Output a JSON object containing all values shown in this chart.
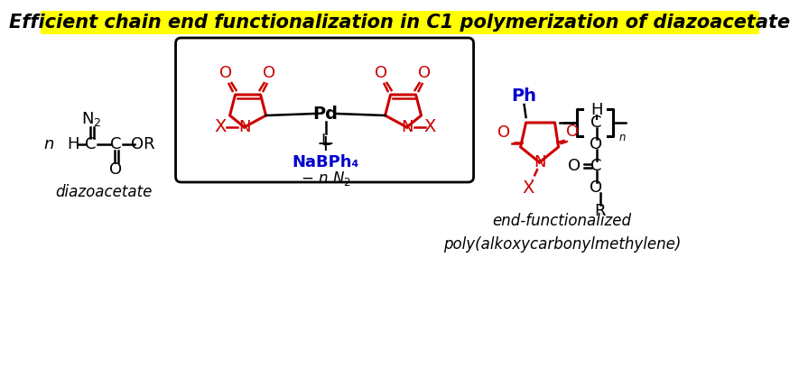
{
  "title_text": "Efficient chain end functionalization in C1 polymerization of diazoacetate",
  "title_bg": "#ffff00",
  "title_color": "#000000",
  "bg_color": "#ffffff",
  "red": "#cc0000",
  "blue": "#0000cc",
  "black": "#000000",
  "label_diazoacetate": "diazoacetate",
  "label_product": "end-functionalized\npoly(alkoxycarbonylmethylene)"
}
